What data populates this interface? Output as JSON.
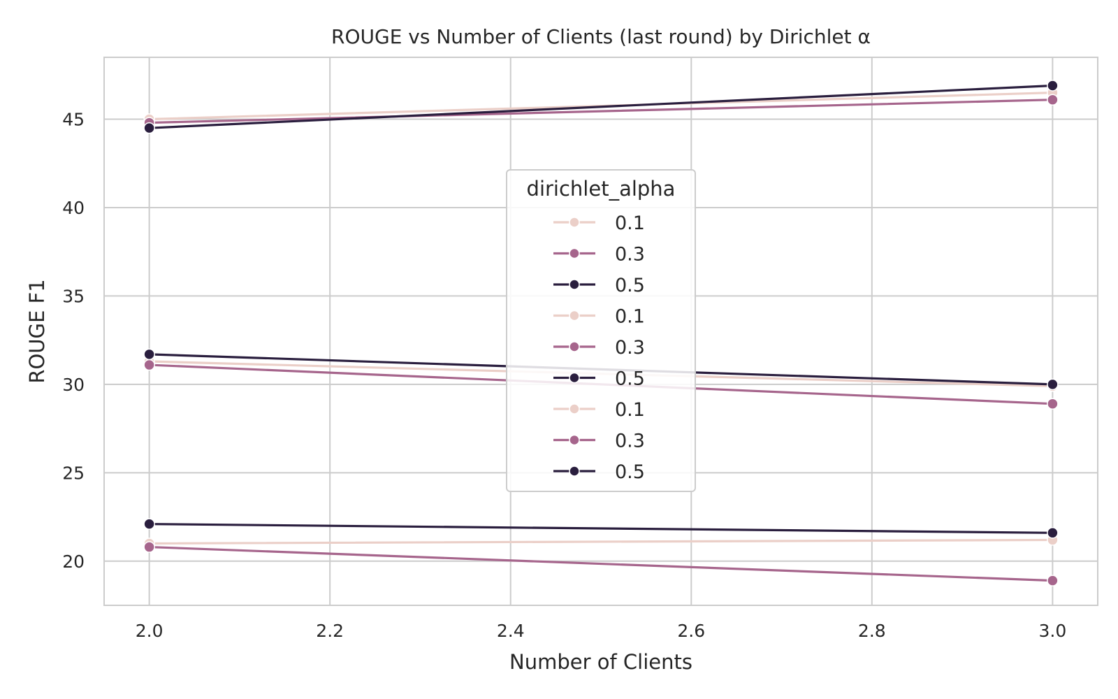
{
  "chart_data": {
    "type": "line",
    "title": "ROUGE vs Number of Clients (last round) by Dirichlet α",
    "xlabel": "Number of Clients",
    "ylabel": "ROUGE F1",
    "xlim": [
      1.95,
      3.05
    ],
    "ylim": [
      17.5,
      48.5
    ],
    "xticks": [
      "2.0",
      "2.2",
      "2.4",
      "2.6",
      "2.8",
      "3.0"
    ],
    "yticks": [
      "20",
      "25",
      "30",
      "35",
      "40",
      "45"
    ],
    "grid": true,
    "legend_title": "dirichlet_alpha",
    "legend_position": "center",
    "colors": {
      "0.1": "#ebcfc8",
      "0.3": "#a6658c",
      "0.5": "#2a1e3e"
    },
    "series": [
      {
        "name": "0.1",
        "x": [
          2.0,
          3.0
        ],
        "y": [
          45.0,
          46.5
        ]
      },
      {
        "name": "0.3",
        "x": [
          2.0,
          3.0
        ],
        "y": [
          44.8,
          46.1
        ]
      },
      {
        "name": "0.5",
        "x": [
          2.0,
          3.0
        ],
        "y": [
          44.5,
          46.9
        ]
      },
      {
        "name": "0.1",
        "x": [
          2.0,
          3.0
        ],
        "y": [
          31.3,
          29.9
        ]
      },
      {
        "name": "0.3",
        "x": [
          2.0,
          3.0
        ],
        "y": [
          31.1,
          28.9
        ]
      },
      {
        "name": "0.5",
        "x": [
          2.0,
          3.0
        ],
        "y": [
          31.7,
          30.0
        ]
      },
      {
        "name": "0.1",
        "x": [
          2.0,
          3.0
        ],
        "y": [
          21.0,
          21.2
        ]
      },
      {
        "name": "0.3",
        "x": [
          2.0,
          3.0
        ],
        "y": [
          20.8,
          18.9
        ]
      },
      {
        "name": "0.5",
        "x": [
          2.0,
          3.0
        ],
        "y": [
          22.1,
          21.6
        ]
      }
    ]
  }
}
